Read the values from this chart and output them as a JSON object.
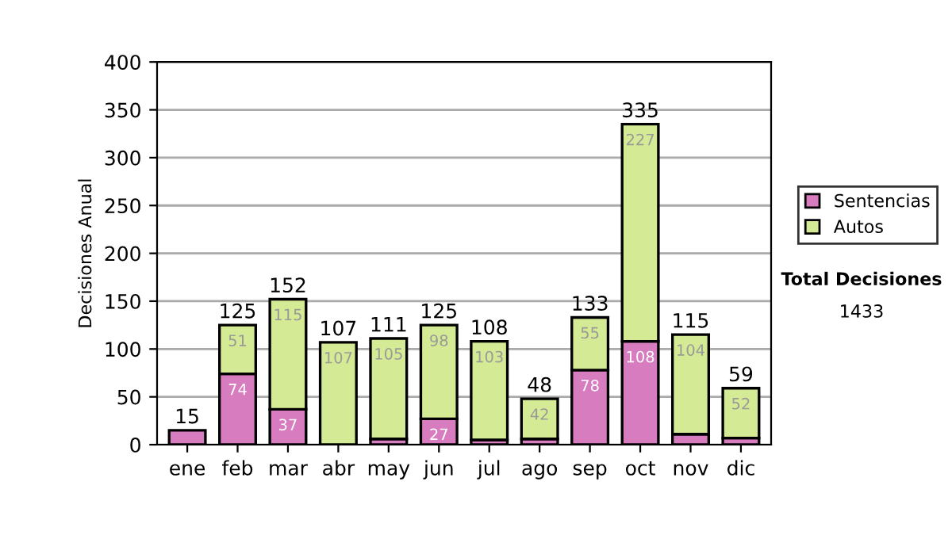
{
  "chart_data": {
    "type": "bar",
    "stacked": true,
    "ylabel": "Decisiones Anual",
    "categories": [
      "ene",
      "feb",
      "mar",
      "abr",
      "may",
      "jun",
      "jul",
      "ago",
      "sep",
      "oct",
      "nov",
      "dic"
    ],
    "series": [
      {
        "name": "Sentencias",
        "color": "#d87cc0",
        "values": [
          15,
          74,
          37,
          0,
          6,
          27,
          5,
          6,
          78,
          108,
          11,
          7
        ],
        "value_labels": [
          null,
          "74",
          "37",
          null,
          null,
          "27",
          null,
          null,
          "78",
          "108",
          null,
          null
        ]
      },
      {
        "name": "Autos",
        "color": "#d4ea94",
        "values": [
          null,
          51,
          115,
          107,
          105,
          98,
          103,
          42,
          55,
          227,
          104,
          52
        ],
        "value_labels": [
          null,
          "51",
          "115",
          "107",
          "105",
          "98",
          "103",
          "42",
          "55",
          "227",
          "104",
          "52"
        ]
      }
    ],
    "totals": [
      "15",
      "125",
      "152",
      "107",
      "111",
      "125",
      "108",
      "48",
      "133",
      "335",
      "115",
      "59"
    ],
    "ylim": [
      0,
      400
    ],
    "yticks": [
      0,
      50,
      100,
      150,
      200,
      250,
      300,
      350,
      400
    ],
    "grid": "y",
    "legend": "right",
    "annotations": [
      "Total Decisiones",
      "1433"
    ]
  }
}
